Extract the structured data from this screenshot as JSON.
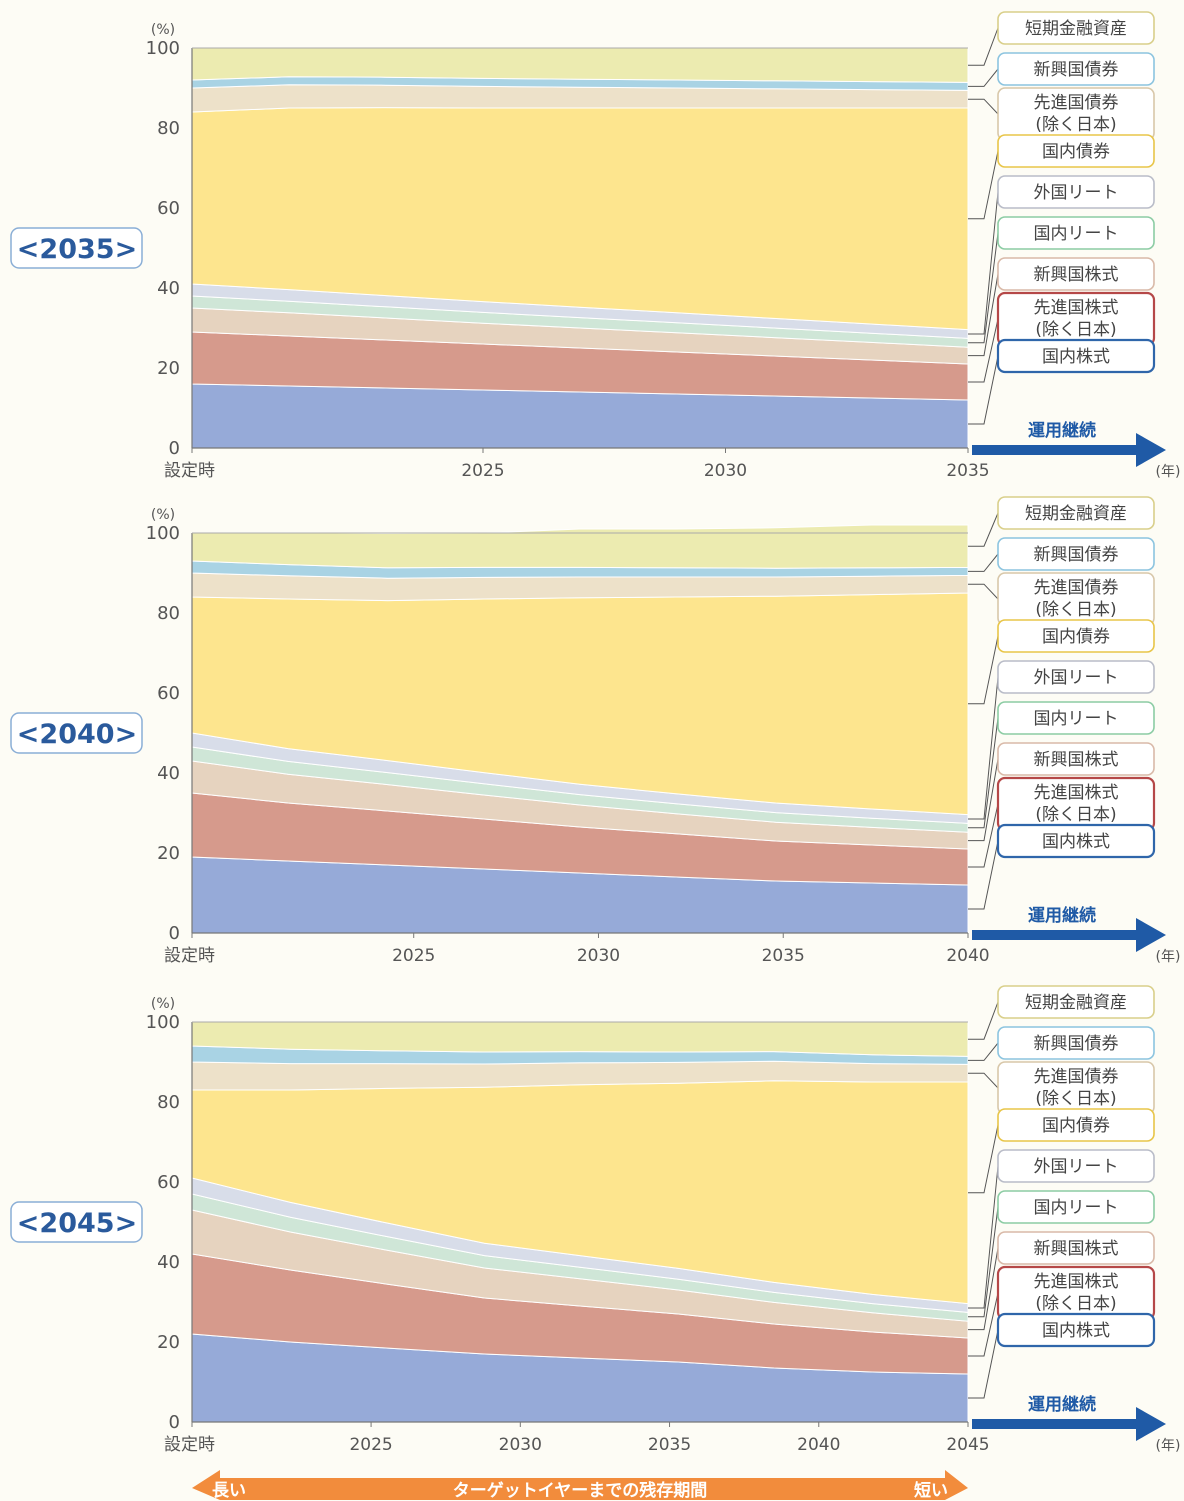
{
  "colors": {
    "国内株式": "#96aad8",
    "先進国株式(除く日本)": "#d69a8c",
    "新興国株式": "#e6d3bf",
    "国内リート": "#cfe6d7",
    "外国リート": "#d8dde9",
    "国内債券": "#fde58e",
    "先進国債券(除く日本)": "#ede1c9",
    "新興国債券": "#a9d3e4",
    "短期金融資産": "#ecebb0",
    "legend_border": {
      "短期金融資産": "#d9cf8a",
      "新興国債券": "#8cc4df",
      "先進国債券(除く日本)": "#d8c7a9",
      "国内債券": "#e8c548",
      "外国リート": "#b9bcc8",
      "国内リート": "#8ccca4",
      "新興国株式": "#d9b9a8",
      "先進国株式(除く日本)": "#b54848",
      "国内株式": "#2f66aa"
    },
    "arrow_blue": "#1f5aa6",
    "bottom_arrow": "#f28c3c"
  },
  "labels": {
    "y_unit": "(%)",
    "year_unit": "(年)",
    "continue_label": "運用継続",
    "bottom_long": "長い",
    "bottom_short": "短い",
    "bottom_center": "ターゲットイヤーまでの残存期間"
  },
  "chart_data": [
    {
      "type": "area",
      "stacked": true,
      "target_label": "<2035>",
      "ylabel": "(%)",
      "ylim": [
        0,
        100
      ],
      "yticks": [
        "0",
        "20",
        "40",
        "60",
        "80",
        "100"
      ],
      "x_start": 2019,
      "x_end": 2035,
      "x": [
        2019,
        2021,
        2023,
        2025,
        2027,
        2029,
        2031,
        2033,
        2035
      ],
      "xtick_labels": [
        {
          "x": 2019,
          "label": "設定時"
        },
        {
          "x": 2025,
          "label": "2025"
        },
        {
          "x": 2030,
          "label": "2030"
        },
        {
          "x": 2035,
          "label": "2035"
        }
      ],
      "series": [
        {
          "name": "国内株式",
          "values": [
            16,
            15.5,
            15,
            14.5,
            14,
            13.5,
            13,
            12.5,
            12
          ]
        },
        {
          "name": "先進国株式(除く日本)",
          "values": [
            13,
            12.5,
            12,
            11.5,
            11,
            10.5,
            10,
            9.5,
            9
          ]
        },
        {
          "name": "新興国株式",
          "values": [
            6,
            5.8,
            5.5,
            5.2,
            5,
            4.8,
            4.6,
            4.4,
            4.2
          ]
        },
        {
          "name": "国内リート",
          "values": [
            3,
            2.9,
            2.8,
            2.7,
            2.6,
            2.5,
            2.4,
            2.3,
            2.2
          ]
        },
        {
          "name": "外国リート",
          "values": [
            3,
            2.9,
            2.8,
            2.7,
            2.6,
            2.5,
            2.4,
            2.3,
            2.2
          ]
        },
        {
          "name": "国内債券",
          "values": [
            43,
            45.4,
            47,
            48.4,
            49.8,
            51.2,
            52.6,
            54,
            55.4
          ]
        },
        {
          "name": "先進国債券(除く日本)",
          "values": [
            6,
            5.8,
            5.6,
            5.4,
            5.2,
            5,
            4.8,
            4.6,
            4.4
          ]
        },
        {
          "name": "新興国債券",
          "values": [
            2,
            2,
            2,
            2,
            2,
            2,
            2,
            2,
            2
          ]
        },
        {
          "name": "短期金融資産",
          "values": [
            8,
            7.2,
            7.3,
            7.6,
            7.8,
            8,
            8.2,
            8.4,
            8.6
          ]
        }
      ]
    },
    {
      "type": "area",
      "stacked": true,
      "target_label": "<2040>",
      "ylabel": "(%)",
      "ylim": [
        0,
        100
      ],
      "yticks": [
        "0",
        "20",
        "40",
        "60",
        "80",
        "100"
      ],
      "x_start": 2019,
      "x_end": 2040,
      "x": [
        2019,
        2021.6,
        2024.3,
        2026.9,
        2029.5,
        2032.1,
        2034.8,
        2037.4,
        2040
      ],
      "xtick_labels": [
        {
          "x": 2019,
          "label": "設定時"
        },
        {
          "x": 2025,
          "label": "2025"
        },
        {
          "x": 2030,
          "label": "2030"
        },
        {
          "x": 2035,
          "label": "2035"
        },
        {
          "x": 2040,
          "label": "2040"
        }
      ],
      "series": [
        {
          "name": "国内株式",
          "values": [
            19,
            18,
            17,
            16,
            15,
            14,
            13,
            12.5,
            12
          ]
        },
        {
          "name": "先進国株式(除く日本)",
          "values": [
            16,
            14.5,
            13.5,
            12.5,
            11.5,
            10.8,
            10,
            9.5,
            9
          ]
        },
        {
          "name": "新興国株式",
          "values": [
            8,
            7.2,
            6.6,
            6,
            5.5,
            5,
            4.7,
            4.4,
            4.2
          ]
        },
        {
          "name": "国内リート",
          "values": [
            3.5,
            3.2,
            3,
            2.8,
            2.6,
            2.5,
            2.4,
            2.3,
            2.2
          ]
        },
        {
          "name": "外国リート",
          "values": [
            3.5,
            3.2,
            3,
            2.8,
            2.6,
            2.5,
            2.4,
            2.3,
            2.2
          ]
        },
        {
          "name": "国内債券",
          "values": [
            34,
            37.4,
            40,
            43.4,
            46.6,
            49.2,
            51.7,
            53.6,
            55.4
          ]
        },
        {
          "name": "先進国債券(除く日本)",
          "values": [
            6,
            5.8,
            5.6,
            5.4,
            5.2,
            5,
            4.8,
            4.6,
            4.4
          ]
        },
        {
          "name": "新興国債券",
          "values": [
            3,
            2.8,
            2.6,
            2.5,
            2.4,
            2.3,
            2.2,
            2.1,
            2
          ]
        },
        {
          "name": "短期金融資産",
          "values": [
            7,
            8,
            8.6,
            8.6,
            9.6,
            9.7,
            10.1,
            10.7,
            10.6
          ]
        }
      ]
    },
    {
      "type": "area",
      "stacked": true,
      "target_label": "<2045>",
      "ylabel": "(%)",
      "ylim": [
        0,
        100
      ],
      "yticks": [
        "0",
        "20",
        "40",
        "60",
        "80",
        "100"
      ],
      "x_start": 2019,
      "x_end": 2045,
      "x": [
        2019,
        2022.3,
        2025.5,
        2028.8,
        2032,
        2035.3,
        2038.5,
        2041.8,
        2045
      ],
      "xtick_labels": [
        {
          "x": 2019,
          "label": "設定時"
        },
        {
          "x": 2025,
          "label": "2025"
        },
        {
          "x": 2030,
          "label": "2030"
        },
        {
          "x": 2035,
          "label": "2035"
        },
        {
          "x": 2040,
          "label": "2040"
        },
        {
          "x": 2045,
          "label": "2045"
        }
      ],
      "series": [
        {
          "name": "国内株式",
          "values": [
            22,
            20,
            18.5,
            17,
            16,
            15,
            13.5,
            12.5,
            12
          ]
        },
        {
          "name": "先進国株式(除く日本)",
          "values": [
            20,
            18,
            16,
            14,
            13,
            12,
            11,
            10,
            9
          ]
        },
        {
          "name": "新興国株式",
          "values": [
            11,
            9.5,
            8.5,
            7.5,
            6.8,
            6,
            5.4,
            4.8,
            4.2
          ]
        },
        {
          "name": "国内リート",
          "values": [
            4,
            3.7,
            3.4,
            3.1,
            2.9,
            2.7,
            2.5,
            2.3,
            2.2
          ]
        },
        {
          "name": "外国リート",
          "values": [
            4,
            3.7,
            3.4,
            3.1,
            2.9,
            2.7,
            2.5,
            2.3,
            2.2
          ]
        },
        {
          "name": "国内債券",
          "values": [
            22,
            28.1,
            33.6,
            39,
            42.7,
            46.3,
            50.4,
            53.1,
            55.4
          ]
        },
        {
          "name": "先進国債券(除く日本)",
          "values": [
            7,
            6.6,
            6.2,
            5.8,
            5.5,
            5.2,
            4.9,
            4.6,
            4.4
          ]
        },
        {
          "name": "新興国債券",
          "values": [
            4,
            3.6,
            3.2,
            3,
            2.8,
            2.6,
            2.4,
            2.2,
            2
          ]
        },
        {
          "name": "短期金融資産",
          "values": [
            6,
            6.8,
            7.2,
            7.5,
            7.4,
            7.5,
            7.4,
            8.2,
            8.6
          ]
        }
      ]
    }
  ],
  "legend": {
    "entries": [
      {
        "key": "短期金融資産",
        "lines": [
          "短期金融資産"
        ]
      },
      {
        "key": "新興国債券",
        "lines": [
          "新興国債券"
        ]
      },
      {
        "key": "先進国債券(除く日本)",
        "lines": [
          "先進国債券",
          "(除く日本)"
        ]
      },
      {
        "key": "国内債券",
        "lines": [
          "国内債券"
        ]
      },
      {
        "key": "外国リート",
        "lines": [
          "外国リート"
        ]
      },
      {
        "key": "国内リート",
        "lines": [
          "国内リート"
        ]
      },
      {
        "key": "新興国株式",
        "lines": [
          "新興国株式"
        ]
      },
      {
        "key": "先進国株式(除く日本)",
        "lines": [
          "先進国株式",
          "(除く日本)"
        ]
      },
      {
        "key": "国内株式",
        "lines": [
          "国内株式"
        ]
      }
    ]
  }
}
